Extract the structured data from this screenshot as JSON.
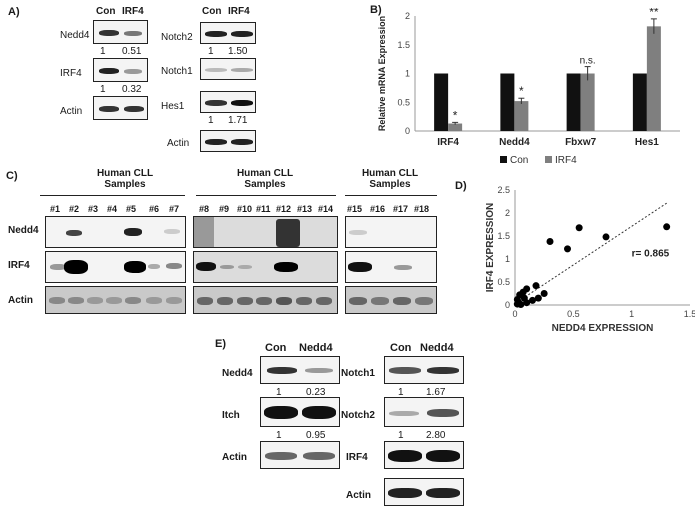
{
  "panel_a": {
    "letter": "A)",
    "left": {
      "con_header": "Con",
      "irf4_header": "IRF4",
      "rows": [
        {
          "label": "Nedd4",
          "q_con": "1",
          "q_irf4": "0.51"
        },
        {
          "label": "IRF4",
          "q_con": "1",
          "q_irf4": "0.32"
        },
        {
          "label": "Actin"
        }
      ]
    },
    "right": {
      "con_header": "Con",
      "irf4_header": "IRF4",
      "rows": [
        {
          "label": "Notch2",
          "q_con": "1",
          "q_irf4": "1.50"
        },
        {
          "label": "Notch1"
        },
        {
          "label": "Hes1",
          "q_con": "1",
          "q_irf4": "1.71"
        },
        {
          "label": "Actin"
        }
      ]
    }
  },
  "panel_b": {
    "letter": "B)",
    "chart_data": {
      "type": "bar",
      "categories": [
        "IRF4",
        "Nedd4",
        "Fbxw7",
        "Hes1"
      ],
      "series": [
        {
          "name": "Con",
          "color": "#111111",
          "values": [
            1,
            1,
            1,
            1
          ]
        },
        {
          "name": "IRF4",
          "color": "#7f7f7f",
          "values": [
            0.13,
            0.52,
            1.0,
            1.82
          ]
        }
      ],
      "errors": [
        0.02,
        0.05,
        0.12,
        0.13
      ],
      "annotations": [
        "*",
        "*",
        "n.s.",
        "**"
      ],
      "ylabel": "Relative mRNA Expression",
      "yticks": [
        "0",
        "0.5",
        "1",
        "1.5",
        "2"
      ],
      "ylim": [
        0,
        2
      ]
    }
  },
  "panel_c": {
    "letter": "C)",
    "groups": [
      {
        "title_line1": "Human CLL",
        "title_line2": "Samples",
        "lanes": [
          "#1",
          "#2",
          "#3",
          "#4",
          "#5",
          "#6",
          "#7"
        ]
      },
      {
        "title_line1": "Human CLL",
        "title_line2": "Samples",
        "lanes": [
          "#8",
          "#9",
          "#10",
          "#11",
          "#12",
          "#13",
          "#14"
        ]
      },
      {
        "title_line1": "Human CLL",
        "title_line2": "Samples",
        "lanes": [
          "#15",
          "#16",
          "#17",
          "#18"
        ]
      }
    ],
    "row_labels": [
      "Nedd4",
      "IRF4",
      "Actin"
    ]
  },
  "panel_d": {
    "letter": "D)",
    "chart_data": {
      "type": "scatter",
      "xlabel": "NEDD4 EXPRESSION",
      "ylabel": "IRF4 EXPRESSION",
      "xticks": [
        "0",
        "0.5",
        "1",
        "1.5"
      ],
      "yticks": [
        "0",
        "0.5",
        "1",
        "1.5",
        "2",
        "2.5"
      ],
      "xlim": [
        0,
        1.5
      ],
      "ylim": [
        0,
        2.5
      ],
      "annotation": "r= 0.865",
      "trendline": {
        "slope": 1.68,
        "intercept": 0.03
      },
      "points": [
        [
          0.02,
          0.02
        ],
        [
          0.03,
          0.06
        ],
        [
          0.05,
          0.01
        ],
        [
          0.04,
          0.22
        ],
        [
          0.08,
          0.15
        ],
        [
          0.1,
          0.05
        ],
        [
          0.1,
          0.35
        ],
        [
          0.15,
          0.1
        ],
        [
          0.18,
          0.42
        ],
        [
          0.2,
          0.15
        ],
        [
          0.25,
          0.25
        ],
        [
          0.3,
          1.38
        ],
        [
          0.45,
          1.22
        ],
        [
          0.55,
          1.68
        ],
        [
          0.78,
          1.48
        ],
        [
          1.3,
          1.7
        ],
        [
          0.07,
          0.28
        ],
        [
          0.02,
          0.12
        ]
      ]
    }
  },
  "panel_e": {
    "letter": "E)",
    "left": {
      "con_header": "Con",
      "nedd4_header": "Nedd4",
      "rows": [
        {
          "label": "Nedd4",
          "q_con": "1",
          "q_nedd4": "0.23"
        },
        {
          "label": "Itch",
          "q_con": "1",
          "q_nedd4": "0.95"
        },
        {
          "label": "Actin"
        }
      ]
    },
    "right": {
      "con_header": "Con",
      "nedd4_header": "Nedd4",
      "rows": [
        {
          "label": "Notch1",
          "q_con": "1",
          "q_nedd4": "1.67"
        },
        {
          "label": "Notch2",
          "q_con": "1",
          "q_nedd4": "2.80"
        },
        {
          "label": "IRF4"
        },
        {
          "label": "Actin"
        }
      ]
    }
  }
}
